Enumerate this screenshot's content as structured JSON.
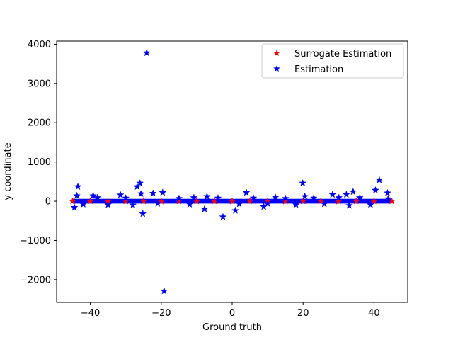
{
  "chart_data": {
    "type": "scatter",
    "title": "",
    "xlabel": "Ground truth",
    "ylabel": "y coordinate",
    "xlim": [
      -49.5,
      49.5
    ],
    "ylim": [
      -2580,
      4080
    ],
    "xticks": [
      -40,
      -20,
      0,
      20,
      40
    ],
    "yticks": [
      -2000,
      -1000,
      0,
      1000,
      2000,
      3000,
      4000
    ],
    "xtick_labels": [
      "−40",
      "−20",
      "0",
      "20",
      "40"
    ],
    "ytick_labels": [
      "−2000",
      "−1000",
      "0",
      "1000",
      "2000",
      "3000",
      "4000"
    ],
    "grid": false,
    "legend_position": "upper right",
    "marker": "star",
    "series": [
      {
        "name": "Surrogate Estimation",
        "color": "#ff0000",
        "x_range": [
          -45,
          45
        ],
        "y_band": [
          -25,
          25
        ],
        "points": [
          [
            -45,
            0
          ],
          [
            -40,
            2
          ],
          [
            -35,
            -3
          ],
          [
            -30,
            1
          ],
          [
            -25,
            4
          ],
          [
            -20,
            -2
          ],
          [
            -15,
            3
          ],
          [
            -10,
            0
          ],
          [
            -5,
            2
          ],
          [
            0,
            -1
          ],
          [
            5,
            3
          ],
          [
            10,
            0
          ],
          [
            15,
            -2
          ],
          [
            20,
            2
          ],
          [
            25,
            1
          ],
          [
            30,
            -3
          ],
          [
            35,
            2
          ],
          [
            40,
            0
          ],
          [
            45,
            1
          ]
        ]
      },
      {
        "name": "Estimation",
        "color": "#0000ff",
        "x_range": [
          -45,
          45
        ],
        "y_band": [
          -60,
          60
        ],
        "points": [
          [
            -43.5,
            370
          ],
          [
            -43.8,
            140
          ],
          [
            -44.5,
            -160
          ],
          [
            -39.2,
            140
          ],
          [
            -31.5,
            160
          ],
          [
            -26.8,
            370
          ],
          [
            -26,
            460
          ],
          [
            -25.7,
            190
          ],
          [
            -25.2,
            -320
          ],
          [
            -24.1,
            3780
          ],
          [
            -22.3,
            200
          ],
          [
            -19.6,
            220
          ],
          [
            -19.2,
            -2290
          ],
          [
            -10.8,
            90
          ],
          [
            -7.8,
            -200
          ],
          [
            -7.1,
            120
          ],
          [
            -2.6,
            -400
          ],
          [
            0.9,
            -240
          ],
          [
            4,
            220
          ],
          [
            8.9,
            -140
          ],
          [
            12.2,
            100
          ],
          [
            19.9,
            460
          ],
          [
            20.5,
            120
          ],
          [
            28.3,
            170
          ],
          [
            30.1,
            90
          ],
          [
            32.2,
            170
          ],
          [
            34.1,
            240
          ],
          [
            40.4,
            280
          ],
          [
            41.5,
            540
          ],
          [
            43.8,
            210
          ],
          [
            -42,
            -80
          ],
          [
            -38,
            90
          ],
          [
            -35,
            -90
          ],
          [
            -30,
            80
          ],
          [
            -28,
            -100
          ],
          [
            -21,
            -60
          ],
          [
            -15,
            70
          ],
          [
            -12,
            -80
          ],
          [
            -4,
            80
          ],
          [
            2,
            -70
          ],
          [
            6,
            80
          ],
          [
            10,
            -60
          ],
          [
            15,
            70
          ],
          [
            18,
            -90
          ],
          [
            23,
            80
          ],
          [
            26,
            -70
          ],
          [
            33,
            -110
          ],
          [
            36,
            90
          ],
          [
            39,
            -90
          ],
          [
            44,
            60
          ]
        ]
      }
    ]
  }
}
